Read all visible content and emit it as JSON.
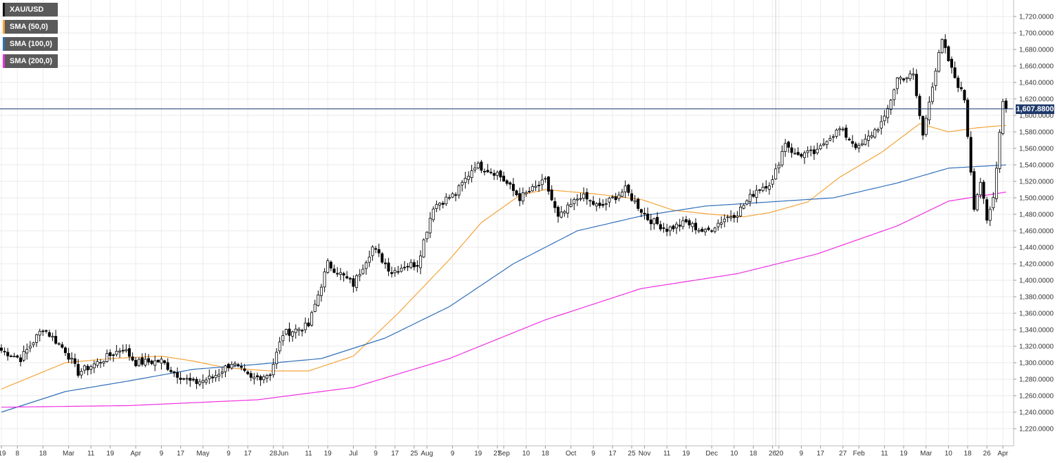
{
  "chart_data": {
    "type": "candlestick",
    "instrument": "XAU/USD",
    "timeframe": "daily",
    "ylim": [
      1210,
      1730
    ],
    "y_ticks": [
      1220,
      1240,
      1260,
      1280,
      1300,
      1320,
      1340,
      1360,
      1380,
      1400,
      1420,
      1440,
      1460,
      1480,
      1500,
      1520,
      1540,
      1560,
      1580,
      1600,
      1620,
      1640,
      1660,
      1680,
      1700,
      1720
    ],
    "y_tick_labels": [
      "1,220.0000",
      "1,240.0000",
      "1,260.0000",
      "1,280.0000",
      "1,300.0000",
      "1,320.0000",
      "1,340.0000",
      "1,360.0000",
      "1,380.0000",
      "1,400.0000",
      "1,420.0000",
      "1,440.0000",
      "1,460.0000",
      "1,480.0000",
      "1,500.0000",
      "1,520.0000",
      "1,540.0000",
      "1,560.0000",
      "1,580.0000",
      "1,600.0000",
      "1,620.0000",
      "1,640.0000",
      "1,660.0000",
      "1,680.0000",
      "1,700.0000",
      "1,720.0000"
    ],
    "x_labels": [
      "'19",
      "8",
      "18",
      "Mar",
      "11",
      "19",
      "Apr",
      "9",
      "17",
      "May",
      "9",
      "17",
      "28",
      "Jun",
      "11",
      "19",
      "Jul",
      "9",
      "17",
      "25",
      "Aug",
      "9",
      "19",
      "27",
      "Sep",
      "10",
      "18",
      "Oct",
      "9",
      "17",
      "25",
      "Nov",
      "11",
      "19",
      "Dec",
      "10",
      "18",
      "26",
      "'20",
      "9",
      "17",
      "27",
      "Feb",
      "11",
      "19",
      "Mar",
      "10",
      "18",
      "26",
      "Apr"
    ],
    "x_label_index": [
      0,
      5,
      13,
      21,
      28,
      34,
      42,
      50,
      56,
      63,
      71,
      77,
      85,
      88,
      96,
      102,
      110,
      117,
      123,
      129,
      133,
      141,
      149,
      155,
      157,
      164,
      170,
      178,
      185,
      191,
      197,
      201,
      208,
      214,
      222,
      229,
      235,
      241,
      243,
      250,
      256,
      263,
      268,
      276,
      282,
      289,
      296,
      302,
      308,
      313
    ],
    "separator_index": 242,
    "current_price": 1607.88,
    "current_price_label": "1,607.8800",
    "anchors": [
      [
        0,
        1315
      ],
      [
        6,
        1305
      ],
      [
        13,
        1342
      ],
      [
        20,
        1315
      ],
      [
        24,
        1288
      ],
      [
        30,
        1300
      ],
      [
        38,
        1318
      ],
      [
        42,
        1300
      ],
      [
        50,
        1302
      ],
      [
        54,
        1288
      ],
      [
        60,
        1275
      ],
      [
        66,
        1282
      ],
      [
        72,
        1300
      ],
      [
        78,
        1280
      ],
      [
        84,
        1287
      ],
      [
        88,
        1335
      ],
      [
        96,
        1345
      ],
      [
        102,
        1420
      ],
      [
        110,
        1395
      ],
      [
        116,
        1440
      ],
      [
        122,
        1410
      ],
      [
        126,
        1418
      ],
      [
        130,
        1420
      ],
      [
        135,
        1490
      ],
      [
        142,
        1505
      ],
      [
        148,
        1540
      ],
      [
        155,
        1530
      ],
      [
        162,
        1500
      ],
      [
        170,
        1520
      ],
      [
        174,
        1475
      ],
      [
        181,
        1503
      ],
      [
        187,
        1488
      ],
      [
        195,
        1510
      ],
      [
        202,
        1475
      ],
      [
        208,
        1462
      ],
      [
        214,
        1470
      ],
      [
        220,
        1458
      ],
      [
        226,
        1475
      ],
      [
        230,
        1482
      ],
      [
        236,
        1510
      ],
      [
        241,
        1520
      ],
      [
        245,
        1568
      ],
      [
        248,
        1552
      ],
      [
        255,
        1555
      ],
      [
        258,
        1572
      ],
      [
        262,
        1583
      ],
      [
        268,
        1560
      ],
      [
        276,
        1595
      ],
      [
        280,
        1645
      ],
      [
        285,
        1648
      ],
      [
        288,
        1575
      ],
      [
        290,
        1620
      ],
      [
        294,
        1690
      ],
      [
        297,
        1655
      ],
      [
        301,
        1620
      ],
      [
        304,
        1490
      ],
      [
        306,
        1520
      ],
      [
        308,
        1470
      ],
      [
        310,
        1500
      ],
      [
        313,
        1620
      ],
      [
        314,
        1607.88
      ]
    ],
    "series": [
      {
        "name": "XAU/USD",
        "color": "#000000"
      },
      {
        "name": "SMA (50,0)",
        "color": "#f5a33a",
        "anchors": [
          [
            0,
            1268
          ],
          [
            20,
            1300
          ],
          [
            34,
            1305
          ],
          [
            50,
            1308
          ],
          [
            60,
            1302
          ],
          [
            70,
            1294
          ],
          [
            84,
            1290
          ],
          [
            96,
            1290
          ],
          [
            110,
            1308
          ],
          [
            124,
            1360
          ],
          [
            140,
            1425
          ],
          [
            150,
            1470
          ],
          [
            162,
            1503
          ],
          [
            170,
            1510
          ],
          [
            185,
            1505
          ],
          [
            200,
            1498
          ],
          [
            210,
            1485
          ],
          [
            222,
            1480
          ],
          [
            232,
            1477
          ],
          [
            240,
            1482
          ],
          [
            252,
            1495
          ],
          [
            262,
            1525
          ],
          [
            275,
            1555
          ],
          [
            287,
            1590
          ],
          [
            296,
            1580
          ],
          [
            305,
            1585
          ],
          [
            314,
            1588
          ]
        ]
      },
      {
        "name": "SMA (100,0)",
        "color": "#2f6fba",
        "anchors": [
          [
            0,
            1240
          ],
          [
            20,
            1265
          ],
          [
            40,
            1278
          ],
          [
            60,
            1292
          ],
          [
            80,
            1298
          ],
          [
            100,
            1305
          ],
          [
            120,
            1330
          ],
          [
            140,
            1368
          ],
          [
            160,
            1420
          ],
          [
            180,
            1460
          ],
          [
            200,
            1478
          ],
          [
            220,
            1490
          ],
          [
            240,
            1495
          ],
          [
            260,
            1500
          ],
          [
            280,
            1518
          ],
          [
            296,
            1536
          ],
          [
            314,
            1540
          ]
        ]
      },
      {
        "name": "SMA (200,0)",
        "color": "#ee2ee3",
        "anchors": [
          [
            0,
            1246
          ],
          [
            40,
            1248
          ],
          [
            80,
            1255
          ],
          [
            110,
            1270
          ],
          [
            140,
            1305
          ],
          [
            170,
            1352
          ],
          [
            200,
            1390
          ],
          [
            230,
            1408
          ],
          [
            255,
            1432
          ],
          [
            280,
            1466
          ],
          [
            296,
            1496
          ],
          [
            314,
            1507
          ]
        ]
      }
    ]
  }
}
